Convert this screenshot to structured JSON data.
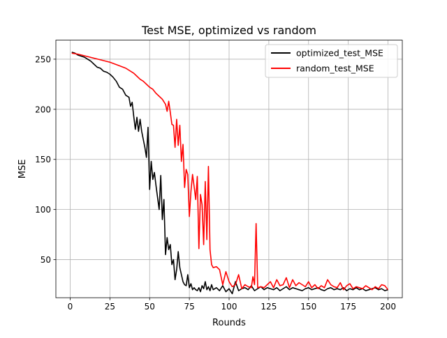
{
  "chart_data": {
    "type": "line",
    "title": "Test MSE, optimized vs random",
    "xlabel": "Rounds",
    "ylabel": "MSE",
    "xlim": [
      -9,
      209
    ],
    "ylim": [
      12,
      269
    ],
    "xticks": [
      0,
      25,
      50,
      75,
      100,
      125,
      150,
      175,
      200
    ],
    "yticks": [
      50,
      100,
      150,
      200,
      250
    ],
    "grid": true,
    "legend_position": "upper right",
    "series": [
      {
        "name": "optimized_test_MSE",
        "color": "#000000",
        "x": [
          1,
          3,
          5,
          7,
          9,
          11,
          13,
          15,
          17,
          19,
          21,
          23,
          25,
          27,
          29,
          31,
          33,
          35,
          37,
          38,
          39,
          40,
          41,
          42,
          43,
          44,
          45,
          46,
          47,
          48,
          49,
          50,
          51,
          52,
          53,
          54,
          55,
          56,
          57,
          58,
          59,
          60,
          61,
          62,
          63,
          64,
          65,
          66,
          67,
          68,
          69,
          70,
          71,
          72,
          73,
          74,
          75,
          76,
          77,
          78,
          79,
          80,
          81,
          82,
          83,
          84,
          85,
          86,
          87,
          88,
          89,
          90,
          92,
          94,
          96,
          98,
          100,
          102,
          104,
          106,
          108,
          110,
          112,
          114,
          116,
          118,
          120,
          122,
          124,
          126,
          128,
          130,
          132,
          134,
          136,
          138,
          140,
          142,
          144,
          146,
          148,
          150,
          152,
          154,
          156,
          158,
          160,
          162,
          164,
          166,
          168,
          170,
          172,
          174,
          176,
          178,
          180,
          182,
          184,
          186,
          188,
          190,
          192,
          194,
          196,
          198,
          200
        ],
        "values": [
          257,
          256,
          254,
          253,
          252,
          250,
          248,
          245,
          242,
          241,
          238,
          237,
          235,
          232,
          228,
          222,
          220,
          214,
          212,
          203,
          207,
          193,
          180,
          192,
          178,
          190,
          178,
          170,
          162,
          152,
          182,
          120,
          148,
          130,
          137,
          124,
          112,
          100,
          134,
          90,
          110,
          55,
          72,
          60,
          65,
          45,
          50,
          30,
          40,
          58,
          42,
          35,
          28,
          25,
          24,
          35,
          22,
          26,
          20,
          22,
          20,
          19,
          22,
          18,
          24,
          21,
          28,
          20,
          23,
          19,
          25,
          20,
          22,
          19,
          24,
          18,
          21,
          16,
          28,
          19,
          21,
          22,
          20,
          24,
          19,
          21,
          23,
          20,
          22,
          21,
          20,
          22,
          19,
          21,
          23,
          20,
          22,
          21,
          20,
          19,
          21,
          22,
          20,
          21,
          22,
          20,
          19,
          21,
          22,
          20,
          21,
          20,
          22,
          19,
          21,
          20,
          22,
          20,
          21,
          19,
          20,
          21,
          22,
          20,
          21,
          19,
          20
        ]
      },
      {
        "name": "random_test_MSE",
        "color": "#ff0000",
        "x": [
          1,
          5,
          10,
          15,
          20,
          25,
          30,
          35,
          40,
          42,
          44,
          46,
          48,
          50,
          52,
          54,
          56,
          58,
          60,
          61,
          62,
          63,
          64,
          65,
          66,
          67,
          68,
          69,
          70,
          71,
          72,
          73,
          74,
          75,
          76,
          77,
          78,
          79,
          80,
          81,
          82,
          83,
          84,
          85,
          86,
          87,
          88,
          89,
          90,
          92,
          94,
          96,
          98,
          100,
          102,
          104,
          106,
          108,
          110,
          112,
          114,
          115,
          116,
          117,
          118,
          120,
          122,
          124,
          126,
          128,
          130,
          132,
          134,
          136,
          138,
          140,
          142,
          144,
          146,
          148,
          150,
          152,
          154,
          156,
          158,
          160,
          162,
          164,
          166,
          168,
          170,
          172,
          174,
          176,
          178,
          180,
          182,
          184,
          186,
          188,
          190,
          192,
          194,
          196,
          198,
          200
        ],
        "values": [
          256,
          255,
          253,
          251,
          249,
          247,
          244,
          241,
          236,
          233,
          230,
          228,
          225,
          222,
          220,
          216,
          213,
          210,
          205,
          198,
          208,
          197,
          185,
          184,
          162,
          190,
          164,
          184,
          148,
          165,
          122,
          140,
          135,
          93,
          118,
          135,
          123,
          110,
          133,
          61,
          115,
          105,
          65,
          128,
          70,
          143,
          60,
          45,
          42,
          43,
          40,
          25,
          38,
          28,
          23,
          25,
          35,
          21,
          25,
          23,
          22,
          33,
          25,
          86,
          22,
          23,
          22,
          25,
          28,
          22,
          30,
          24,
          25,
          32,
          22,
          30,
          24,
          27,
          25,
          23,
          28,
          22,
          25,
          21,
          24,
          22,
          30,
          25,
          23,
          22,
          27,
          20,
          24,
          26,
          21,
          23,
          22,
          21,
          24,
          22,
          20,
          23,
          21,
          25,
          24,
          20
        ]
      }
    ]
  }
}
